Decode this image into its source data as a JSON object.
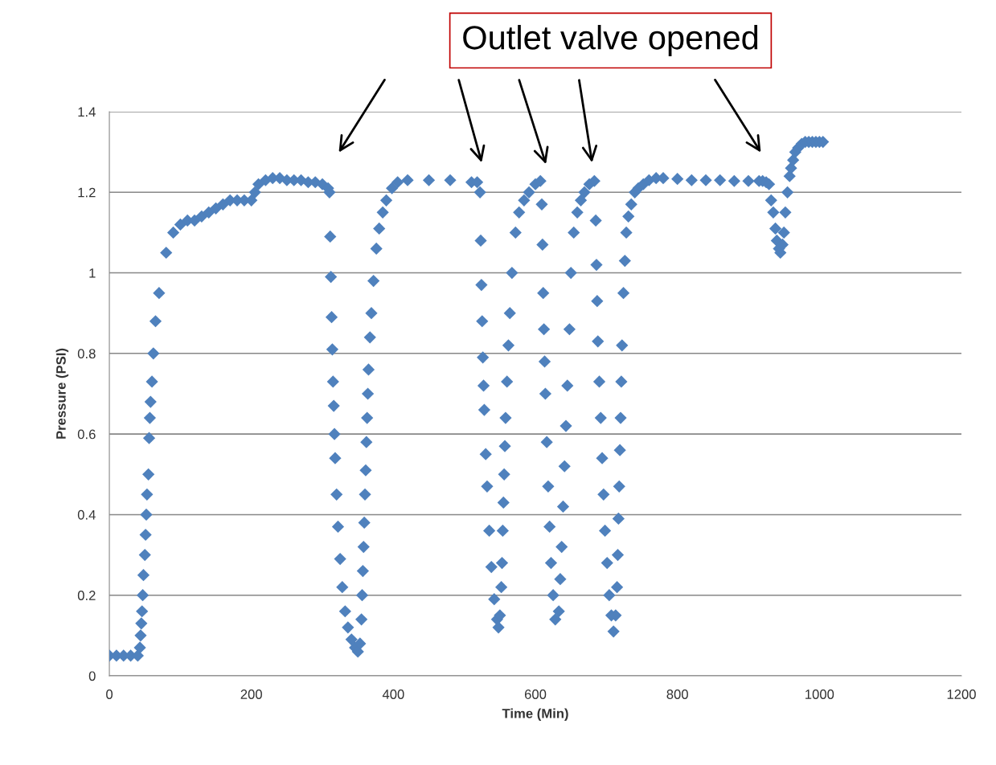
{
  "chart_data": {
    "type": "scatter",
    "xlabel": "Time (Min)",
    "ylabel": "Pressure (PSI)",
    "xlim": [
      0,
      1200
    ],
    "xticks": [
      0,
      200,
      400,
      600,
      800,
      1000,
      1200
    ],
    "ylim": [
      0,
      1.4
    ],
    "yticks": [
      0,
      0.2,
      0.4,
      0.6,
      0.8,
      1,
      1.2,
      1.4
    ],
    "grid": "y",
    "marker": "diamond",
    "annotations": [
      "Outlet valve opened"
    ],
    "series": [
      {
        "color": "#4f81bd",
        "x": [
          0,
          10,
          20,
          30,
          40,
          43,
          44,
          45,
          46,
          47,
          48,
          50,
          51,
          52,
          53,
          55,
          56,
          57,
          58,
          60,
          62,
          65,
          70,
          80,
          90,
          100,
          110,
          120,
          130,
          140,
          150,
          160,
          170,
          180,
          190,
          200,
          205,
          210,
          220,
          230,
          240,
          250,
          260,
          270,
          280,
          290,
          300,
          308,
          310,
          311,
          312,
          313,
          314,
          315,
          316,
          317,
          318,
          320,
          322,
          325,
          328,
          332,
          336,
          341,
          346,
          350,
          353,
          355,
          356,
          357,
          358,
          359,
          360,
          361,
          362,
          363,
          364,
          365,
          367,
          369,
          372,
          376,
          380,
          385,
          390,
          398,
          406,
          420,
          450,
          480,
          510,
          518,
          522,
          523,
          524,
          525,
          526,
          527,
          528,
          530,
          532,
          535,
          538,
          542,
          546,
          548,
          550,
          552,
          553,
          554,
          555,
          556,
          557,
          558,
          560,
          562,
          564,
          567,
          572,
          577,
          584,
          591,
          600,
          607,
          609,
          610,
          611,
          612,
          613,
          614,
          616,
          618,
          620,
          622,
          625,
          628,
          633,
          635,
          637,
          639,
          641,
          643,
          645,
          648,
          650,
          654,
          659,
          664,
          669,
          676,
          683,
          685,
          686,
          687,
          688,
          690,
          692,
          694,
          696,
          698,
          701,
          704,
          707,
          710,
          713,
          715,
          716,
          717,
          718,
          719,
          720,
          721,
          722,
          724,
          726,
          728,
          731,
          735,
          740,
          745,
          752,
          760,
          770,
          780,
          800,
          820,
          840,
          860,
          880,
          900,
          915,
          920,
          925,
          929,
          932,
          935,
          938,
          940,
          943,
          945,
          948,
          950,
          952,
          955,
          958,
          960,
          963,
          966,
          970,
          975,
          980,
          985,
          990,
          995,
          1000,
          1005
        ],
        "values": [
          0.05,
          0.05,
          0.05,
          0.05,
          0.05,
          0.07,
          0.1,
          0.13,
          0.16,
          0.2,
          0.25,
          0.3,
          0.35,
          0.4,
          0.45,
          0.5,
          0.59,
          0.64,
          0.68,
          0.73,
          0.8,
          0.88,
          0.95,
          1.05,
          1.1,
          1.12,
          1.13,
          1.13,
          1.14,
          1.15,
          1.16,
          1.17,
          1.18,
          1.18,
          1.18,
          1.18,
          1.2,
          1.22,
          1.23,
          1.235,
          1.235,
          1.23,
          1.23,
          1.23,
          1.225,
          1.225,
          1.22,
          1.21,
          1.2,
          1.09,
          0.99,
          0.89,
          0.81,
          0.73,
          0.67,
          0.6,
          0.54,
          0.45,
          0.37,
          0.29,
          0.22,
          0.16,
          0.12,
          0.09,
          0.07,
          0.06,
          0.08,
          0.14,
          0.2,
          0.26,
          0.32,
          0.38,
          0.45,
          0.51,
          0.58,
          0.64,
          0.7,
          0.76,
          0.84,
          0.9,
          0.98,
          1.06,
          1.11,
          1.15,
          1.18,
          1.21,
          1.225,
          1.23,
          1.23,
          1.23,
          1.225,
          1.225,
          1.2,
          1.08,
          0.97,
          0.88,
          0.79,
          0.72,
          0.66,
          0.55,
          0.47,
          0.36,
          0.27,
          0.19,
          0.14,
          0.12,
          0.15,
          0.22,
          0.28,
          0.36,
          0.43,
          0.5,
          0.57,
          0.64,
          0.73,
          0.82,
          0.9,
          1.0,
          1.1,
          1.15,
          1.18,
          1.2,
          1.22,
          1.228,
          1.17,
          1.07,
          0.95,
          0.86,
          0.78,
          0.7,
          0.58,
          0.47,
          0.37,
          0.28,
          0.2,
          0.14,
          0.16,
          0.24,
          0.32,
          0.42,
          0.52,
          0.62,
          0.72,
          0.86,
          1.0,
          1.1,
          1.15,
          1.18,
          1.2,
          1.22,
          1.228,
          1.13,
          1.02,
          0.93,
          0.83,
          0.73,
          0.64,
          0.54,
          0.45,
          0.36,
          0.28,
          0.2,
          0.15,
          0.11,
          0.15,
          0.22,
          0.3,
          0.39,
          0.47,
          0.56,
          0.64,
          0.73,
          0.82,
          0.95,
          1.03,
          1.1,
          1.14,
          1.17,
          1.2,
          1.21,
          1.22,
          1.23,
          1.235,
          1.235,
          1.233,
          1.23,
          1.23,
          1.23,
          1.228,
          1.228,
          1.228,
          1.228,
          1.225,
          1.22,
          1.18,
          1.15,
          1.11,
          1.08,
          1.06,
          1.05,
          1.07,
          1.1,
          1.15,
          1.2,
          1.24,
          1.26,
          1.28,
          1.3,
          1.31,
          1.32,
          1.325,
          1.325,
          1.325,
          1.325,
          1.325,
          1.325
        ]
      }
    ]
  }
}
